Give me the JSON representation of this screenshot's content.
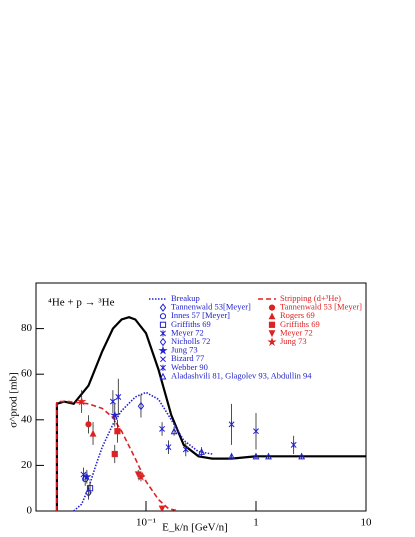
{
  "chart_data": {
    "type": "line",
    "annotation": "⁴He + p → ³He",
    "xlabel": "E_k/n [GeV/n]",
    "ylabel": "σ^prod [mb]",
    "xscale": "log",
    "xlim": [
      0.01,
      10
    ],
    "xticks": [
      {
        "value": 0.1,
        "label": "10⁻¹"
      },
      1,
      10
    ],
    "ylim": [
      0,
      100
    ],
    "yticks": [
      0,
      20,
      40,
      60,
      80
    ],
    "curves": [
      {
        "color": "#000000",
        "style": "solid",
        "x": [
          0.0155,
          0.0155,
          0.018,
          0.022,
          0.03,
          0.04,
          0.05,
          0.06,
          0.07,
          0.08,
          0.1,
          0.13,
          0.17,
          0.22,
          0.3,
          0.4,
          0.6,
          1,
          2,
          5,
          10
        ],
        "values": [
          0,
          47,
          48,
          47,
          55,
          70,
          80,
          84,
          85,
          84,
          78,
          62,
          42,
          29,
          24,
          23,
          23,
          24,
          24,
          24,
          24
        ]
      },
      {
        "name": "Breakup",
        "color": "#2222cc",
        "style": "dotted",
        "x": [
          0.022,
          0.026,
          0.03,
          0.035,
          0.04,
          0.05,
          0.06,
          0.08,
          0.1,
          0.13,
          0.17,
          0.22,
          0.3,
          0.4
        ],
        "values": [
          0,
          3,
          10,
          20,
          28,
          38,
          44,
          50,
          52,
          49,
          40,
          31,
          26,
          25
        ]
      },
      {
        "name": "Stripping (d+³He)",
        "color": "#dd2222",
        "style": "dashed",
        "x": [
          0.0155,
          0.0155,
          0.02,
          0.03,
          0.04,
          0.05,
          0.06,
          0.08,
          0.1,
          0.13,
          0.16,
          0.2
        ],
        "values": [
          0,
          48,
          48,
          47,
          45,
          41,
          35,
          23,
          13,
          5,
          1,
          0
        ]
      }
    ],
    "series": [
      {
        "name": "Tannenwald 53[Meyer]",
        "color": "#2222cc",
        "marker": "diamond-open",
        "x": [
          0.03
        ],
        "values": [
          8
        ],
        "errors": [
          3
        ]
      },
      {
        "name": "Innes 57 [Meyer]",
        "color": "#2222cc",
        "marker": "circle-open",
        "x": [
          0.028
        ],
        "values": [
          14
        ],
        "errors": [
          3
        ]
      },
      {
        "name": "Griffiths 69",
        "color": "#2222cc",
        "marker": "square-open",
        "x": [
          0.031
        ],
        "values": [
          10
        ],
        "errors": [
          3
        ]
      },
      {
        "name": "Meyer 72",
        "color": "#2222cc",
        "marker": "asterisk",
        "x": [
          0.05,
          0.056
        ],
        "values": [
          48,
          50
        ],
        "errors": [
          5,
          8
        ]
      },
      {
        "name": "Nicholls 72",
        "color": "#2222cc",
        "marker": "diamond-open",
        "x": [
          0.09
        ],
        "values": [
          46
        ],
        "errors": [
          5
        ]
      },
      {
        "name": "Jung 73",
        "color": "#2222cc",
        "marker": "star",
        "x": [
          0.029,
          0.052
        ],
        "values": [
          15,
          42
        ],
        "errors": [
          3,
          5
        ]
      },
      {
        "name": "Bizard 77",
        "color": "#2222cc",
        "marker": "cross",
        "x": [
          0.027
        ],
        "values": [
          16
        ],
        "errors": [
          3
        ]
      },
      {
        "name": "Webber 90",
        "color": "#2222cc",
        "marker": "asterisk",
        "x": [
          0.14,
          0.16,
          0.23,
          0.6,
          1,
          2.2
        ],
        "values": [
          36,
          28,
          27,
          38,
          35,
          29
        ],
        "errors": [
          3,
          3,
          3,
          9,
          8,
          4
        ]
      },
      {
        "name": "Aladashvili 81, Glagolev 93, Abdullin 94",
        "color": "#2222cc",
        "marker": "triangle-open",
        "x": [
          0.18,
          0.32,
          0.6,
          1,
          1.3,
          2.6
        ],
        "values": [
          35,
          26,
          24,
          24,
          24,
          24
        ],
        "errors": [
          2,
          2,
          1,
          1,
          1,
          1
        ]
      },
      {
        "name": "Tannenwald 53 [Meyer]",
        "color": "#dd2222",
        "marker": "circle",
        "x": [
          0.03
        ],
        "values": [
          38
        ],
        "errors": [
          4
        ]
      },
      {
        "name": "Rogers 69",
        "color": "#dd2222",
        "marker": "triangle",
        "x": [
          0.033
        ],
        "values": [
          34
        ],
        "errors": [
          5
        ]
      },
      {
        "name": "Griffiths 69",
        "color": "#dd2222",
        "marker": "square",
        "x": [
          0.052,
          0.055
        ],
        "values": [
          25,
          35
        ],
        "errors": [
          4,
          5
        ]
      },
      {
        "name": "Meyer 72",
        "color": "#dd2222",
        "marker": "triangle-down",
        "x": [
          0.085,
          0.14
        ],
        "values": [
          16,
          1
        ],
        "errors": [
          2,
          1
        ]
      },
      {
        "name": "Jung 73",
        "color": "#dd2222",
        "marker": "star",
        "x": [
          0.026,
          0.09
        ],
        "values": [
          48,
          15
        ],
        "errors": [
          5,
          2
        ]
      }
    ]
  }
}
